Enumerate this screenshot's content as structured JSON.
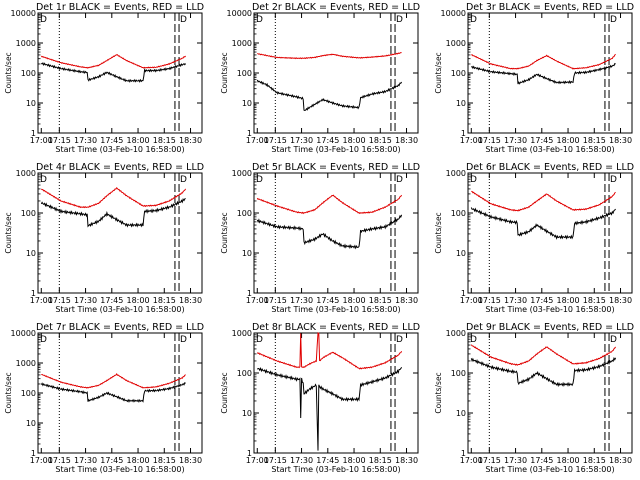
{
  "colors": {
    "events": "#000000",
    "lld": "#e00000",
    "axes": "#000000",
    "background": "#ffffff"
  },
  "chart_data": [
    {
      "type": "line",
      "title": "Det 1r BLACK = Events, RED = LLD",
      "xlabel": "Start Time (03-Feb-10 16:58:00)",
      "ylabel": "Counts/sec",
      "yscale": "log",
      "ylim": [
        1,
        10000
      ],
      "x_ticks": [
        "17:00",
        "17:15",
        "17:30",
        "17:45",
        "18:00",
        "18:15",
        "18:30"
      ],
      "y_ticks": [
        "1",
        "10",
        "100",
        "1000",
        "10000"
      ],
      "flag": "D",
      "x_minutes": [
        0,
        12,
        24,
        28,
        28.5,
        35,
        40,
        46,
        52,
        62,
        63,
        70,
        78,
        86,
        88
      ],
      "series": [
        {
          "name": "Events",
          "color": "#000000",
          "values": [
            210,
            140,
            110,
            105,
            58,
            75,
            105,
            75,
            55,
            55,
            120,
            120,
            140,
            190,
            205
          ]
        },
        {
          "name": "LLD",
          "color": "#e00000",
          "values": [
            360,
            220,
            160,
            150,
            150,
            180,
            260,
            410,
            260,
            150,
            150,
            155,
            200,
            310,
            370
          ]
        }
      ]
    },
    {
      "type": "line",
      "title": "Det 2r BLACK = Events, RED = LLD",
      "xlabel": "Start Time (03-Feb-10 16:58:00)",
      "ylabel": "Counts/sec",
      "yscale": "log",
      "ylim": [
        1,
        10000
      ],
      "x_ticks": [
        "17:00",
        "17:15",
        "17:30",
        "17:45",
        "18:00",
        "18:15",
        "18:30"
      ],
      "y_ticks": [
        "1",
        "10",
        "100",
        "1000",
        "10000"
      ],
      "flag": "D",
      "x_minutes": [
        0,
        6,
        12,
        24,
        28,
        28.5,
        35,
        40,
        46,
        52,
        62,
        63,
        70,
        78,
        86,
        88
      ],
      "series": [
        {
          "name": "Events",
          "color": "#000000",
          "values": [
            55,
            40,
            22,
            16,
            14,
            5.5,
            9,
            13,
            10,
            8,
            7,
            15,
            20,
            24,
            38,
            50
          ]
        },
        {
          "name": "LLD",
          "color": "#e00000",
          "values": [
            440,
            380,
            330,
            310,
            310,
            310,
            330,
            380,
            420,
            360,
            320,
            320,
            340,
            370,
            450,
            480
          ]
        }
      ]
    },
    {
      "type": "line",
      "title": "Det 3r BLACK = Events, RED = LLD",
      "xlabel": "Start Time (03-Feb-10 16:58:00)",
      "ylabel": "Counts/sec",
      "yscale": "log",
      "ylim": [
        1,
        10000
      ],
      "x_ticks": [
        "17:00",
        "17:15",
        "17:30",
        "17:45",
        "18:00",
        "18:15",
        "18:30"
      ],
      "y_ticks": [
        "1",
        "10",
        "100",
        "1000",
        "10000"
      ],
      "flag": "D",
      "x_minutes": [
        0,
        12,
        24,
        28,
        28.5,
        35,
        40,
        46,
        52,
        62,
        63,
        70,
        78,
        86,
        88
      ],
      "series": [
        {
          "name": "Events",
          "color": "#000000",
          "values": [
            160,
            110,
            95,
            90,
            45,
            60,
            90,
            65,
            48,
            50,
            100,
            105,
            130,
            170,
            200
          ]
        },
        {
          "name": "LLD",
          "color": "#e00000",
          "values": [
            410,
            200,
            140,
            140,
            140,
            170,
            260,
            380,
            250,
            140,
            140,
            150,
            190,
            310,
            420
          ]
        }
      ]
    },
    {
      "type": "line",
      "title": "Det 4r BLACK = Events, RED = LLD",
      "xlabel": "Start Time (03-Feb-10 16:58:00)",
      "ylabel": "Counts/sec",
      "yscale": "log",
      "ylim": [
        1,
        1000
      ],
      "x_ticks": [
        "17:00",
        "17:15",
        "17:30",
        "17:45",
        "18:00",
        "18:15",
        "18:30"
      ],
      "y_ticks": [
        "1",
        "10",
        "100",
        "1000"
      ],
      "flag": "D",
      "x_minutes": [
        0,
        12,
        24,
        28,
        28.5,
        35,
        40,
        46,
        52,
        62,
        63,
        70,
        78,
        86,
        88
      ],
      "series": [
        {
          "name": "Events",
          "color": "#000000",
          "values": [
            180,
            110,
            95,
            90,
            48,
            62,
            95,
            68,
            50,
            50,
            110,
            115,
            140,
            200,
            230
          ]
        },
        {
          "name": "LLD",
          "color": "#e00000",
          "values": [
            400,
            200,
            140,
            140,
            140,
            175,
            270,
            420,
            270,
            150,
            150,
            155,
            200,
            320,
            400
          ]
        }
      ]
    },
    {
      "type": "line",
      "title": "Det 5r BLACK = Events, RED = LLD",
      "xlabel": "Start Time (03-Feb-10 16:58:00)",
      "ylabel": "Counts/sec",
      "yscale": "log",
      "ylim": [
        1,
        1000
      ],
      "x_ticks": [
        "17:00",
        "17:15",
        "17:30",
        "17:45",
        "18:00",
        "18:15",
        "18:30"
      ],
      "y_ticks": [
        "1",
        "10",
        "100",
        "1000"
      ],
      "flag": "D",
      "x_minutes": [
        0,
        12,
        24,
        28,
        28.5,
        35,
        40,
        46,
        52,
        62,
        63,
        70,
        78,
        86,
        88
      ],
      "series": [
        {
          "name": "Events",
          "color": "#000000",
          "values": [
            65,
            45,
            42,
            40,
            18,
            22,
            30,
            20,
            15,
            14,
            35,
            40,
            45,
            70,
            90
          ]
        },
        {
          "name": "LLD",
          "color": "#e00000",
          "values": [
            230,
            150,
            105,
            100,
            100,
            120,
            180,
            280,
            180,
            100,
            100,
            105,
            140,
            220,
            280
          ]
        }
      ]
    },
    {
      "type": "line",
      "title": "Det 6r BLACK = Events, RED = LLD",
      "xlabel": "Start Time (03-Feb-10 16:58:00)",
      "ylabel": "Counts/sec",
      "yscale": "log",
      "ylim": [
        1,
        1000
      ],
      "x_ticks": [
        "17:00",
        "17:15",
        "17:30",
        "17:45",
        "18:00",
        "18:15",
        "18:30"
      ],
      "y_ticks": [
        "1",
        "10",
        "100",
        "1000"
      ],
      "flag": "D",
      "x_minutes": [
        0,
        12,
        24,
        28,
        28.5,
        35,
        40,
        46,
        52,
        62,
        63,
        70,
        78,
        86,
        88
      ],
      "series": [
        {
          "name": "Events",
          "color": "#000000",
          "values": [
            130,
            80,
            60,
            58,
            28,
            34,
            50,
            35,
            25,
            25,
            55,
            60,
            75,
            100,
            125
          ]
        },
        {
          "name": "LLD",
          "color": "#e00000",
          "values": [
            350,
            170,
            120,
            115,
            115,
            140,
            200,
            300,
            200,
            120,
            120,
            125,
            160,
            260,
            330
          ]
        }
      ]
    },
    {
      "type": "line",
      "title": "Det 7r BLACK = Events, RED = LLD",
      "xlabel": "Start Time (03-Feb-10 16:58:00)",
      "ylabel": "Counts/sec",
      "yscale": "log",
      "ylim": [
        1,
        10000
      ],
      "x_ticks": [
        "17:00",
        "17:15",
        "17:30",
        "17:45",
        "18:00",
        "18:15",
        "18:30"
      ],
      "y_ticks": [
        "1",
        "10",
        "100",
        "1000",
        "10000"
      ],
      "flag": "D",
      "x_minutes": [
        0,
        12,
        24,
        28,
        28.5,
        35,
        40,
        46,
        52,
        62,
        63,
        70,
        78,
        86,
        88
      ],
      "series": [
        {
          "name": "Events",
          "color": "#000000",
          "values": [
            200,
            135,
            110,
            100,
            55,
            72,
            100,
            75,
            55,
            55,
            118,
            120,
            140,
            190,
            210
          ]
        },
        {
          "name": "LLD",
          "color": "#e00000",
          "values": [
            420,
            230,
            160,
            150,
            150,
            180,
            260,
            420,
            260,
            150,
            150,
            160,
            210,
            320,
            410
          ]
        }
      ]
    },
    {
      "type": "line",
      "title": "Det 8r BLACK = Events, RED = LLD",
      "xlabel": "Start Time (03-Feb-10 16:58:00)",
      "ylabel": "Counts/sec",
      "yscale": "log",
      "ylim": [
        1,
        1000
      ],
      "x_ticks": [
        "17:00",
        "17:15",
        "17:30",
        "17:45",
        "18:00",
        "18:15",
        "18:30"
      ],
      "y_ticks": [
        "1",
        "10",
        "100",
        "1000"
      ],
      "flag": "D",
      "x_minutes": [
        0,
        12,
        24,
        26,
        26.5,
        27,
        28,
        28.5,
        32,
        36,
        37,
        37.5,
        38,
        40,
        46,
        52,
        62,
        63,
        70,
        78,
        86,
        88
      ],
      "series": [
        {
          "name": "Events",
          "color": "#000000",
          "values": [
            130,
            90,
            70,
            70,
            8,
            70,
            55,
            30,
            40,
            50,
            1.2,
            50,
            45,
            40,
            30,
            22,
            22,
            50,
            60,
            75,
            110,
            140
          ]
        },
        {
          "name": "LLD",
          "color": "#e00000",
          "values": [
            320,
            200,
            140,
            140,
            1000,
            140,
            140,
            140,
            170,
            200,
            1000,
            1000,
            200,
            240,
            330,
            240,
            130,
            130,
            140,
            180,
            280,
            350
          ]
        }
      ]
    },
    {
      "type": "line",
      "title": "Det 9r BLACK = Events, RED = LLD",
      "xlabel": "Start Time (03-Feb-10 16:58:00)",
      "ylabel": "Counts/sec",
      "yscale": "log",
      "ylim": [
        1,
        1000
      ],
      "x_ticks": [
        "17:00",
        "17:15",
        "17:30",
        "17:45",
        "18:00",
        "18:15",
        "18:30"
      ],
      "y_ticks": [
        "1",
        "10",
        "100",
        "1000"
      ],
      "flag": "D",
      "x_minutes": [
        0,
        12,
        24,
        28,
        28.5,
        35,
        40,
        46,
        52,
        62,
        63,
        70,
        78,
        86,
        88
      ],
      "series": [
        {
          "name": "Events",
          "color": "#000000",
          "values": [
            220,
            140,
            110,
            105,
            55,
            70,
            100,
            72,
            52,
            52,
            115,
            120,
            145,
            200,
            240
          ]
        },
        {
          "name": "LLD",
          "color": "#e00000",
          "values": [
            500,
            250,
            170,
            160,
            160,
            200,
            300,
            450,
            300,
            170,
            170,
            180,
            230,
            350,
            450
          ]
        }
      ]
    }
  ]
}
